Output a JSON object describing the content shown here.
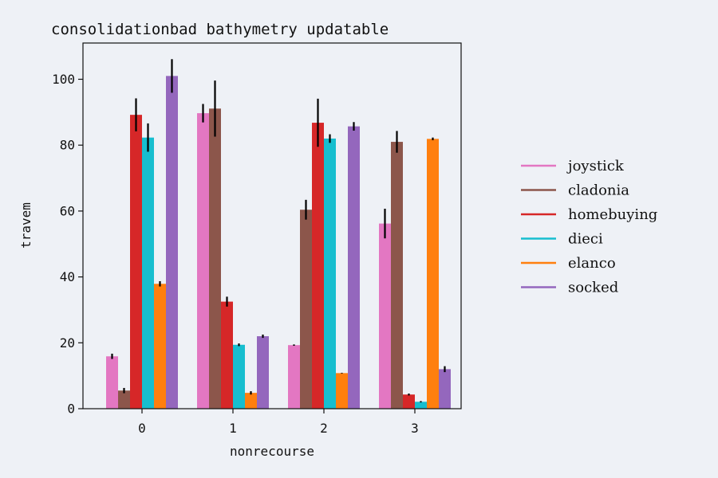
{
  "chart_data": {
    "type": "bar",
    "title": "consolidationbad bathymetry updatable",
    "xlabel": "nonrecourse",
    "ylabel": "travem",
    "categories": [
      "0",
      "1",
      "2",
      "3"
    ],
    "ylim": [
      0,
      111
    ],
    "yticks": [
      0,
      20,
      40,
      60,
      80,
      100
    ],
    "grid": false,
    "legend_position": "right",
    "series": [
      {
        "name": "joystick",
        "color": "#e377c2",
        "values": [
          15.9,
          89.7,
          19.3,
          56.2
        ],
        "errors": [
          0.8,
          2.8,
          0.2,
          4.5
        ]
      },
      {
        "name": "cladonia",
        "color": "#8c564b",
        "values": [
          5.5,
          91.1,
          60.4,
          81.0
        ],
        "errors": [
          0.8,
          8.5,
          3.0,
          3.3
        ]
      },
      {
        "name": "homebuying",
        "color": "#d62728",
        "values": [
          89.2,
          32.5,
          86.8,
          4.3
        ],
        "errors": [
          5.0,
          1.5,
          7.3,
          0.3
        ]
      },
      {
        "name": "dieci",
        "color": "#17becf",
        "values": [
          82.3,
          19.4,
          82.0,
          2.1
        ],
        "errors": [
          4.3,
          0.4,
          1.3,
          0.2
        ]
      },
      {
        "name": "elanco",
        "color": "#ff7f0e",
        "values": [
          37.9,
          4.8,
          10.8,
          81.9
        ],
        "errors": [
          0.8,
          0.5,
          0.1,
          0.4
        ]
      },
      {
        "name": "socked",
        "color": "#9467bd",
        "values": [
          101.0,
          22.0,
          85.7,
          12.0
        ],
        "errors": [
          5.1,
          0.5,
          1.3,
          0.9
        ]
      }
    ]
  }
}
